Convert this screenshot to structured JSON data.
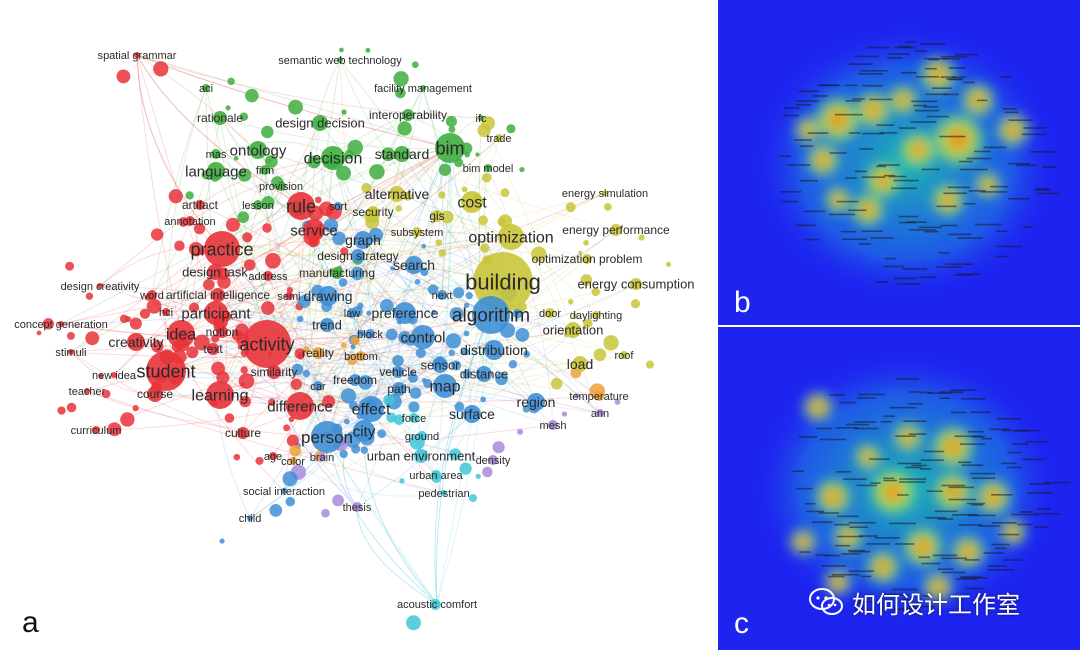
{
  "panels": {
    "a": {
      "letter": "a"
    },
    "b": {
      "letter": "b"
    },
    "c": {
      "letter": "c"
    }
  },
  "watermark": {
    "icon": "wechat-icon",
    "text": "如何设计工作室"
  },
  "clusters": {
    "red": "#e8333a",
    "green": "#3fae3f",
    "blue": "#3f8fd6",
    "yellow": "#c9c53a",
    "purple": "#a78bd8",
    "orange": "#f0a03a",
    "cyan": "#3fc7d6"
  },
  "network_nodes": [
    {
      "label": "spatial grammar",
      "c": "red"
    },
    {
      "label": "semantic web technology",
      "c": "green"
    },
    {
      "label": "aci",
      "c": "green"
    },
    {
      "label": "facility management",
      "c": "green"
    },
    {
      "label": "rationale",
      "c": "green"
    },
    {
      "label": "design decision",
      "c": "green"
    },
    {
      "label": "interoperability",
      "c": "green"
    },
    {
      "label": "ifc",
      "c": "green"
    },
    {
      "label": "mas",
      "c": "green"
    },
    {
      "label": "ontology",
      "c": "green"
    },
    {
      "label": "decision",
      "c": "green"
    },
    {
      "label": "standard",
      "c": "green"
    },
    {
      "label": "bim",
      "c": "green"
    },
    {
      "label": "trade",
      "c": "yellow"
    },
    {
      "label": "language",
      "c": "green"
    },
    {
      "label": "firm",
      "c": "green"
    },
    {
      "label": "bim model",
      "c": "green"
    },
    {
      "label": "provision",
      "c": "green"
    },
    {
      "label": "alternative",
      "c": "yellow"
    },
    {
      "label": "energy simulation",
      "c": "yellow"
    },
    {
      "label": "artifact",
      "c": "red"
    },
    {
      "label": "lesson",
      "c": "green"
    },
    {
      "label": "rule",
      "c": "red"
    },
    {
      "label": "sort",
      "c": "blue"
    },
    {
      "label": "security",
      "c": "yellow"
    },
    {
      "label": "cost",
      "c": "yellow"
    },
    {
      "label": "annotation",
      "c": "red"
    },
    {
      "label": "gis",
      "c": "yellow"
    },
    {
      "label": "service",
      "c": "red"
    },
    {
      "label": "subsystem",
      "c": "yellow"
    },
    {
      "label": "energy performance",
      "c": "yellow"
    },
    {
      "label": "practice",
      "c": "red"
    },
    {
      "label": "graph",
      "c": "blue"
    },
    {
      "label": "optimization",
      "c": "yellow"
    },
    {
      "label": "design task",
      "c": "red"
    },
    {
      "label": "address",
      "c": "red"
    },
    {
      "label": "design strategy",
      "c": "blue"
    },
    {
      "label": "optimization problem",
      "c": "yellow"
    },
    {
      "label": "search",
      "c": "blue"
    },
    {
      "label": "manufacturing",
      "c": "green"
    },
    {
      "label": "building",
      "c": "yellow"
    },
    {
      "label": "energy consumption",
      "c": "yellow"
    },
    {
      "label": "design creativity",
      "c": "red"
    },
    {
      "label": "word",
      "c": "red"
    },
    {
      "label": "artificial intelligence",
      "c": "red"
    },
    {
      "label": "semi",
      "c": "red"
    },
    {
      "label": "drawing",
      "c": "blue"
    },
    {
      "label": "next",
      "c": "blue"
    },
    {
      "label": "participant",
      "c": "red"
    },
    {
      "label": "law",
      "c": "blue"
    },
    {
      "label": "preference",
      "c": "blue"
    },
    {
      "label": "algorithm",
      "c": "blue"
    },
    {
      "label": "door",
      "c": "yellow"
    },
    {
      "label": "daylighting",
      "c": "yellow"
    },
    {
      "label": "concept generation",
      "c": "red"
    },
    {
      "label": "hci",
      "c": "red"
    },
    {
      "label": "trend",
      "c": "blue"
    },
    {
      "label": "orientation",
      "c": "yellow"
    },
    {
      "label": "idea",
      "c": "red"
    },
    {
      "label": "notion",
      "c": "red"
    },
    {
      "label": "block",
      "c": "blue"
    },
    {
      "label": "control",
      "c": "blue"
    },
    {
      "label": "creativity",
      "c": "red"
    },
    {
      "label": "activity",
      "c": "red"
    },
    {
      "label": "distribution",
      "c": "blue"
    },
    {
      "label": "stimuli",
      "c": "red"
    },
    {
      "label": "text",
      "c": "red"
    },
    {
      "label": "reality",
      "c": "orange"
    },
    {
      "label": "bottom",
      "c": "orange"
    },
    {
      "label": "roof",
      "c": "yellow"
    },
    {
      "label": "sensor",
      "c": "blue"
    },
    {
      "label": "load",
      "c": "yellow"
    },
    {
      "label": "student",
      "c": "red"
    },
    {
      "label": "new idea",
      "c": "red"
    },
    {
      "label": "similarity",
      "c": "red"
    },
    {
      "label": "vehicle",
      "c": "blue"
    },
    {
      "label": "distance",
      "c": "blue"
    },
    {
      "label": "freedom",
      "c": "blue"
    },
    {
      "label": "map",
      "c": "blue"
    },
    {
      "label": "teacher",
      "c": "red"
    },
    {
      "label": "course",
      "c": "red"
    },
    {
      "label": "learning",
      "c": "red"
    },
    {
      "label": "car",
      "c": "blue"
    },
    {
      "label": "path",
      "c": "blue"
    },
    {
      "label": "temperature",
      "c": "orange"
    },
    {
      "label": "region",
      "c": "blue"
    },
    {
      "label": "difference",
      "c": "red"
    },
    {
      "label": "effect",
      "c": "blue"
    },
    {
      "label": "ann",
      "c": "purple"
    },
    {
      "label": "surface",
      "c": "blue"
    },
    {
      "label": "force",
      "c": "cyan"
    },
    {
      "label": "curriculum",
      "c": "red"
    },
    {
      "label": "culture",
      "c": "red"
    },
    {
      "label": "person",
      "c": "blue"
    },
    {
      "label": "city",
      "c": "blue"
    },
    {
      "label": "mesh",
      "c": "purple"
    },
    {
      "label": "ground",
      "c": "cyan"
    },
    {
      "label": "age",
      "c": "red"
    },
    {
      "label": "brain",
      "c": "purple"
    },
    {
      "label": "color",
      "c": "orange"
    },
    {
      "label": "urban environment",
      "c": "cyan"
    },
    {
      "label": "density",
      "c": "purple"
    },
    {
      "label": "urban area",
      "c": "cyan"
    },
    {
      "label": "social interaction",
      "c": "blue"
    },
    {
      "label": "pedestrian",
      "c": "cyan"
    },
    {
      "label": "thesis",
      "c": "purple"
    },
    {
      "label": "child",
      "c": "blue"
    },
    {
      "label": "acoustic comfort",
      "c": "cyan"
    }
  ]
}
